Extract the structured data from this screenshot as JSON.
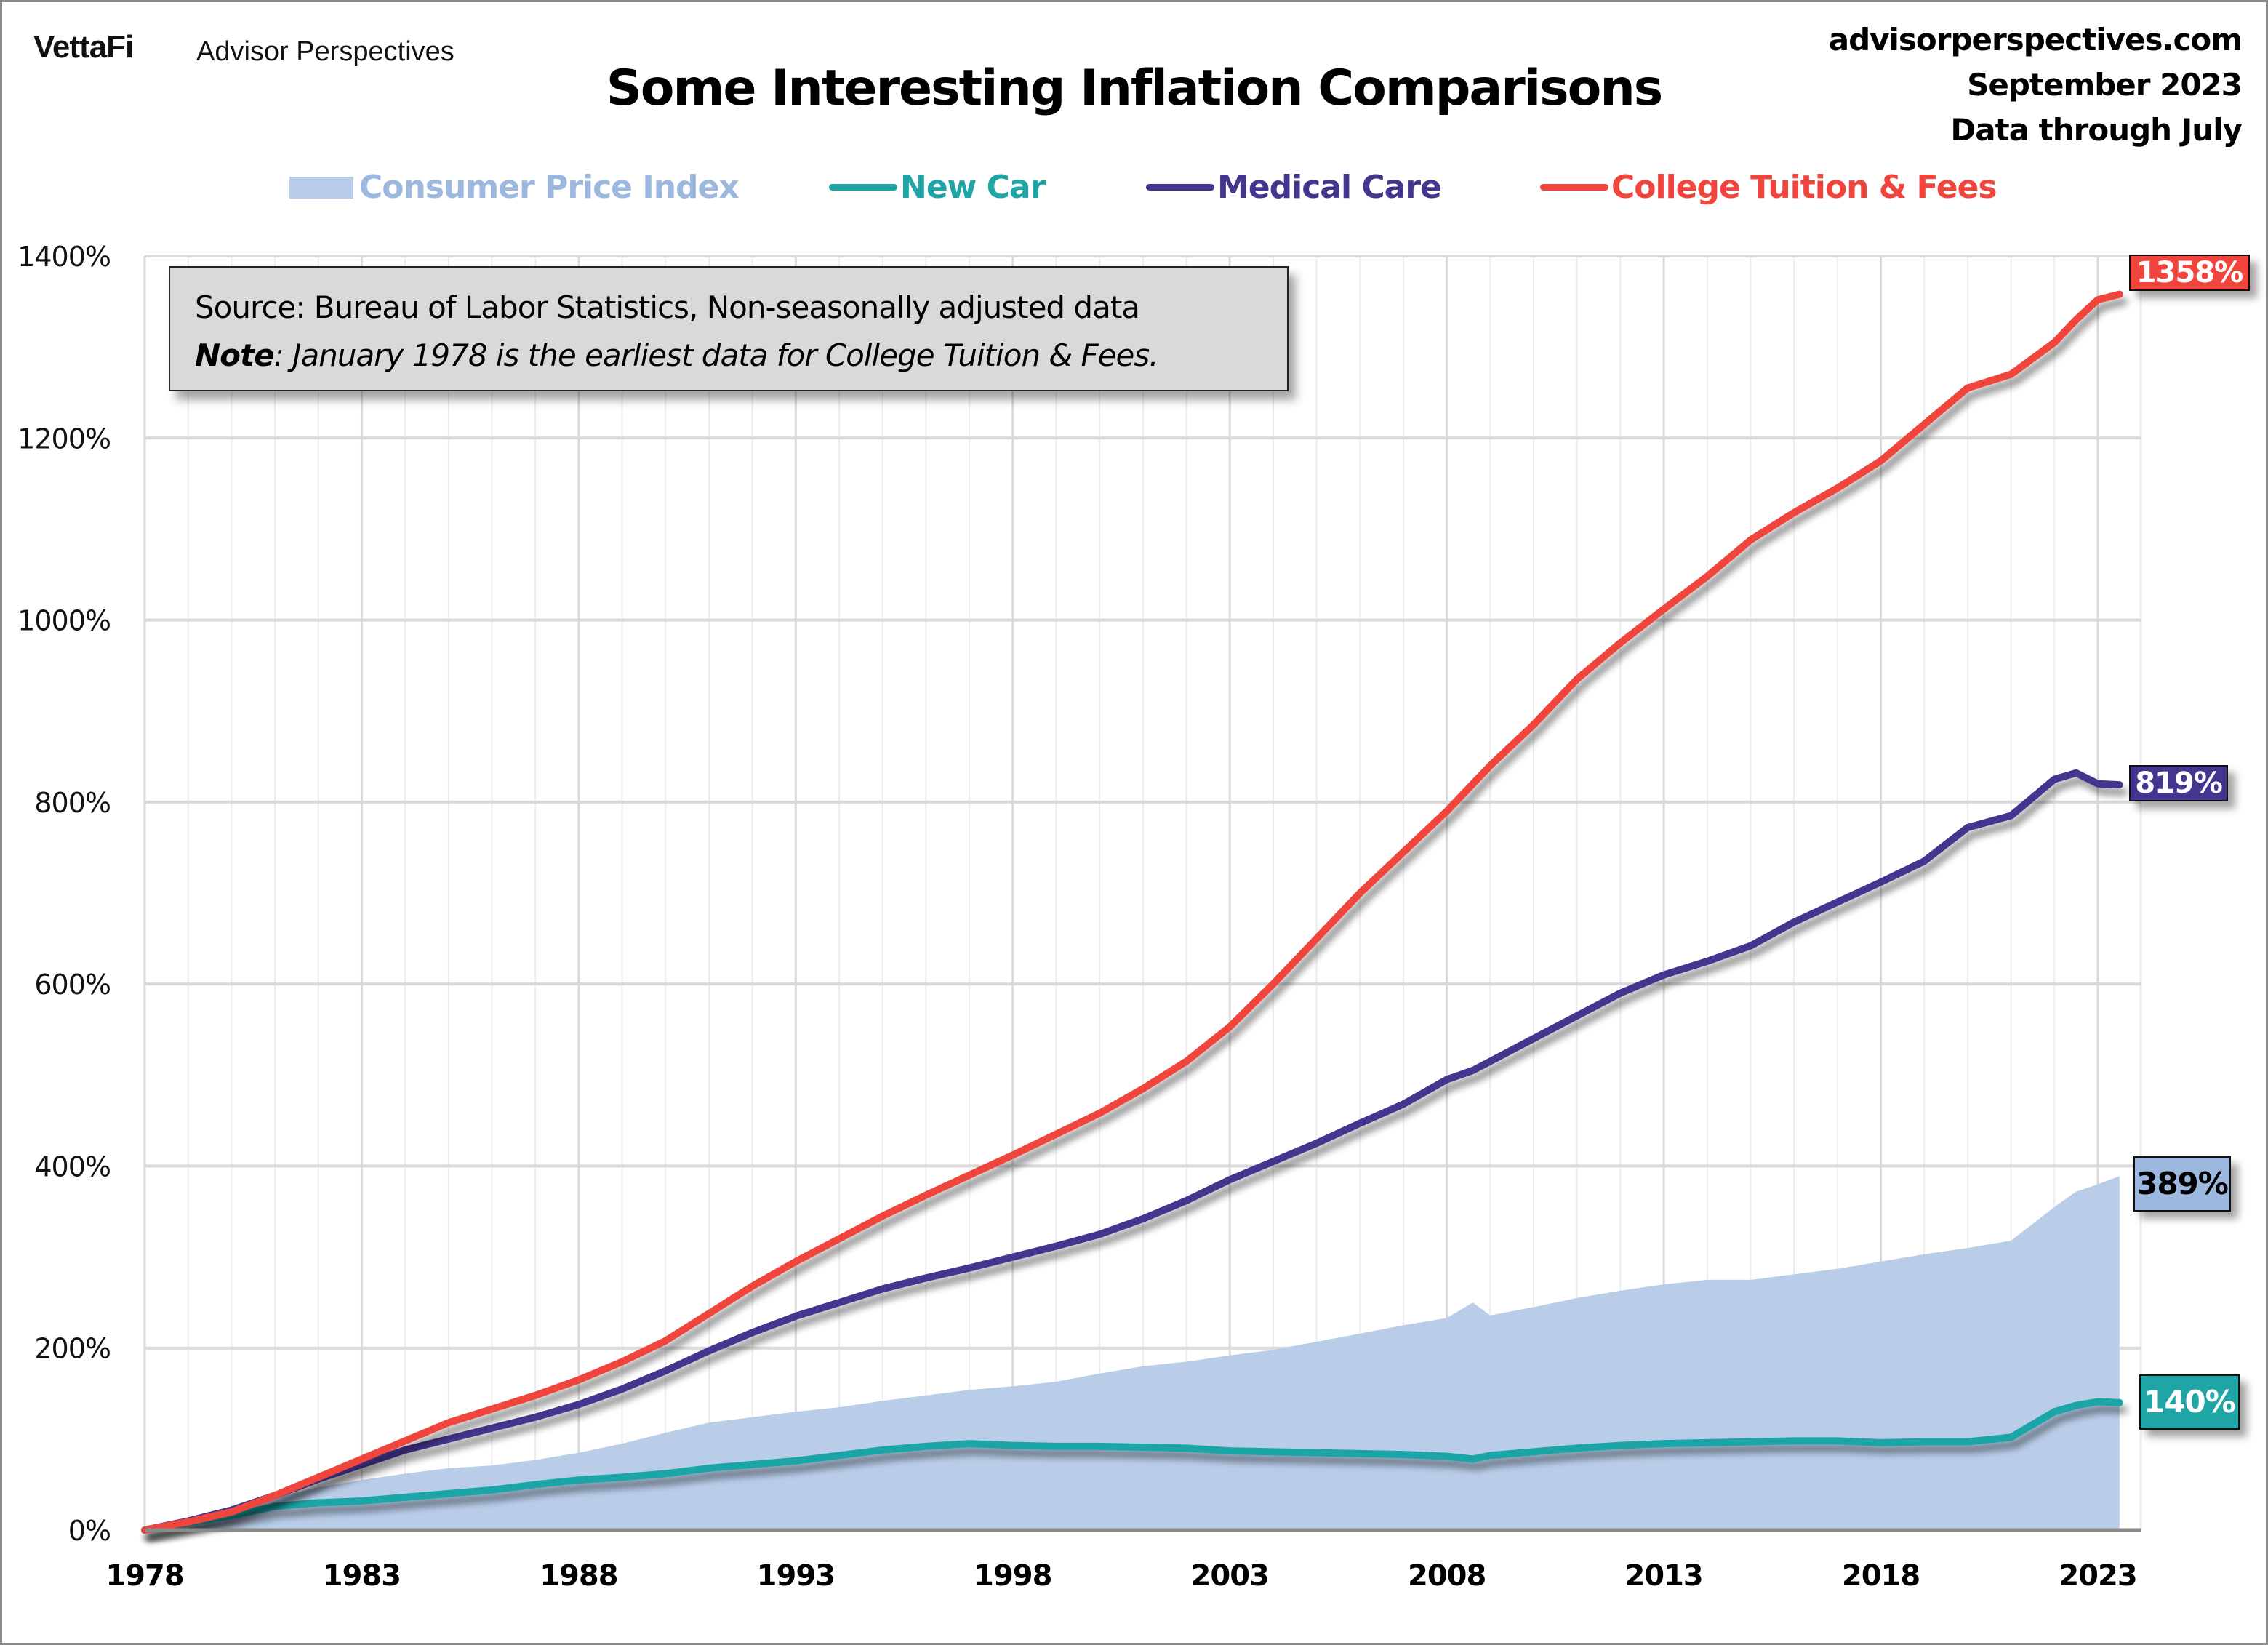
{
  "header": {
    "brand_logo": "VettaFi",
    "brand_subtitle": "Advisor Perspectives",
    "site": "advisorperspectives.com",
    "date": "September 2023",
    "data_note": "Data through July"
  },
  "note_box": {
    "source_text": "Source: Bureau of Labor Statistics, Non-seasonally adjusted data",
    "note_label": "Note",
    "note_text": ": January 1978 is the earliest data for College Tuition & Fees."
  },
  "colors": {
    "cpi_fill": "#b9cde9",
    "cpi_text": "#9db8df",
    "new_car": "#1fa5a6",
    "medical": "#45358e",
    "college": "#f0443d",
    "grid": "#d9d9d9",
    "axis": "#8a8a8a"
  },
  "chart_data": {
    "type": "line",
    "title": "Some Interesting Inflation Comparisons",
    "xlabel": "",
    "ylabel": "",
    "x_ticks": [
      "1978",
      "1983",
      "1988",
      "1993",
      "1998",
      "2003",
      "2008",
      "2013",
      "2018",
      "2023"
    ],
    "y_ticks": [
      "0%",
      "200%",
      "400%",
      "600%",
      "800%",
      "1000%",
      "1200%",
      "1400%"
    ],
    "ylim": [
      0,
      1400
    ],
    "xlim": [
      1978,
      2023.9
    ],
    "grid": true,
    "legend_position": "top",
    "x": [
      1978,
      1979,
      1980,
      1981,
      1982,
      1983,
      1984,
      1985,
      1986,
      1987,
      1988,
      1989,
      1990,
      1991,
      1992,
      1993,
      1994,
      1995,
      1996,
      1997,
      1998,
      1999,
      2000,
      2001,
      2002,
      2003,
      2004,
      2005,
      2006,
      2007,
      2008,
      2008.6,
      2009,
      2010,
      2011,
      2012,
      2013,
      2014,
      2015,
      2016,
      2017,
      2018,
      2019,
      2020,
      2021,
      2022,
      2022.5,
      2023,
      2023.5
    ],
    "series": [
      {
        "name": "Consumer Price Index",
        "kind": "area",
        "end_label": "389%",
        "values": [
          0,
          9,
          22,
          36,
          47,
          55,
          62,
          68,
          71,
          77,
          85,
          95,
          107,
          118,
          124,
          130,
          135,
          142,
          148,
          154,
          158,
          163,
          172,
          180,
          185,
          192,
          198,
          207,
          216,
          225,
          233,
          250,
          236,
          245,
          255,
          263,
          270,
          275,
          275,
          281,
          287,
          295,
          303,
          310,
          318,
          355,
          372,
          380,
          389
        ]
      },
      {
        "name": "New Car",
        "kind": "line",
        "end_label": "140%",
        "values": [
          0,
          8,
          16,
          26,
          30,
          32,
          36,
          40,
          44,
          50,
          55,
          58,
          62,
          68,
          72,
          76,
          82,
          88,
          92,
          95,
          93,
          92,
          92,
          91,
          90,
          87,
          86,
          85,
          84,
          83,
          81,
          78,
          82,
          86,
          90,
          93,
          95,
          96,
          97,
          98,
          98,
          96,
          97,
          97,
          102,
          130,
          137,
          141,
          140
        ]
      },
      {
        "name": "Medical Care",
        "kind": "line",
        "end_label": "819%",
        "values": [
          0,
          10,
          22,
          38,
          56,
          72,
          88,
          100,
          112,
          124,
          138,
          155,
          175,
          197,
          217,
          235,
          250,
          265,
          277,
          288,
          300,
          312,
          325,
          342,
          362,
          385,
          405,
          425,
          447,
          468,
          495,
          505,
          515,
          540,
          565,
          590,
          610,
          625,
          642,
          668,
          690,
          712,
          735,
          772,
          785,
          825,
          832,
          820,
          819
        ]
      },
      {
        "name": "College Tuition & Fees",
        "kind": "line",
        "end_label": "1358%",
        "values": [
          0,
          9,
          20,
          38,
          58,
          78,
          98,
          118,
          133,
          148,
          165,
          185,
          208,
          238,
          268,
          295,
          320,
          345,
          368,
          390,
          412,
          435,
          458,
          485,
          515,
          553,
          600,
          650,
          700,
          745,
          790,
          820,
          840,
          885,
          935,
          975,
          1012,
          1048,
          1088,
          1118,
          1145,
          1175,
          1215,
          1255,
          1270,
          1305,
          1330,
          1352,
          1358
        ]
      }
    ]
  }
}
